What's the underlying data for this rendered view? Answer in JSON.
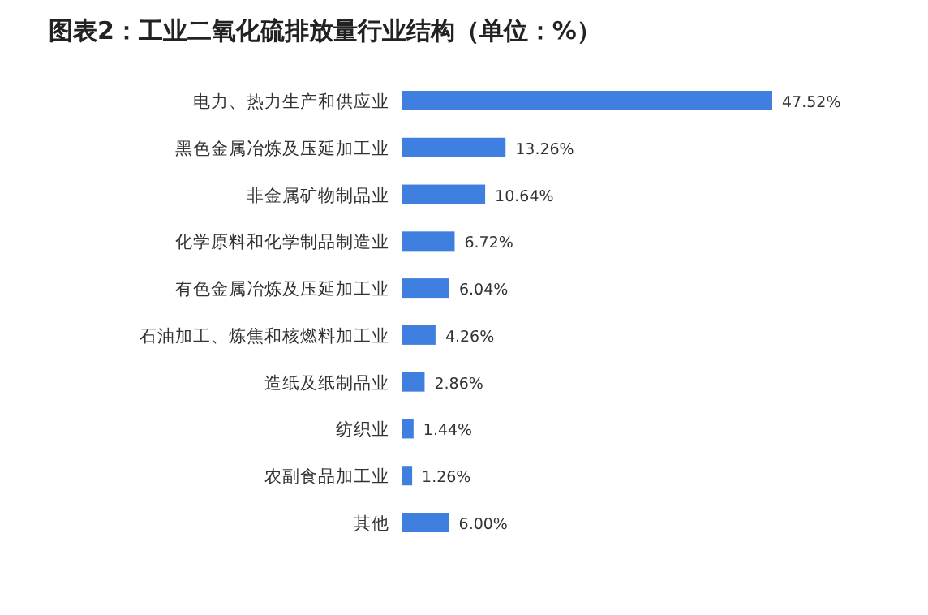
{
  "chart_data": {
    "type": "bar",
    "orientation": "horizontal",
    "title": "图表2：工业二氧化硫排放量行业结构（单位：%）",
    "categories": [
      "电力、热力生产和供应业",
      "黑色金属冶炼及压延加工业",
      "非金属矿物制品业",
      "化学原料和化学制品制造业",
      "有色金属冶炼及压延加工业",
      "石油加工、炼焦和核燃料加工业",
      "造纸及纸制品业",
      "纺织业",
      "农副食品加工业",
      "其他"
    ],
    "values": [
      47.52,
      13.26,
      10.64,
      6.72,
      6.04,
      4.26,
      2.86,
      1.44,
      1.26,
      6.0
    ],
    "value_labels": [
      "47.52%",
      "13.26%",
      "10.64%",
      "6.72%",
      "6.04%",
      "4.26%",
      "2.86%",
      "1.44%",
      "1.26%",
      "6.00%"
    ],
    "color": "#3f7fe0",
    "data_labels": true
  }
}
